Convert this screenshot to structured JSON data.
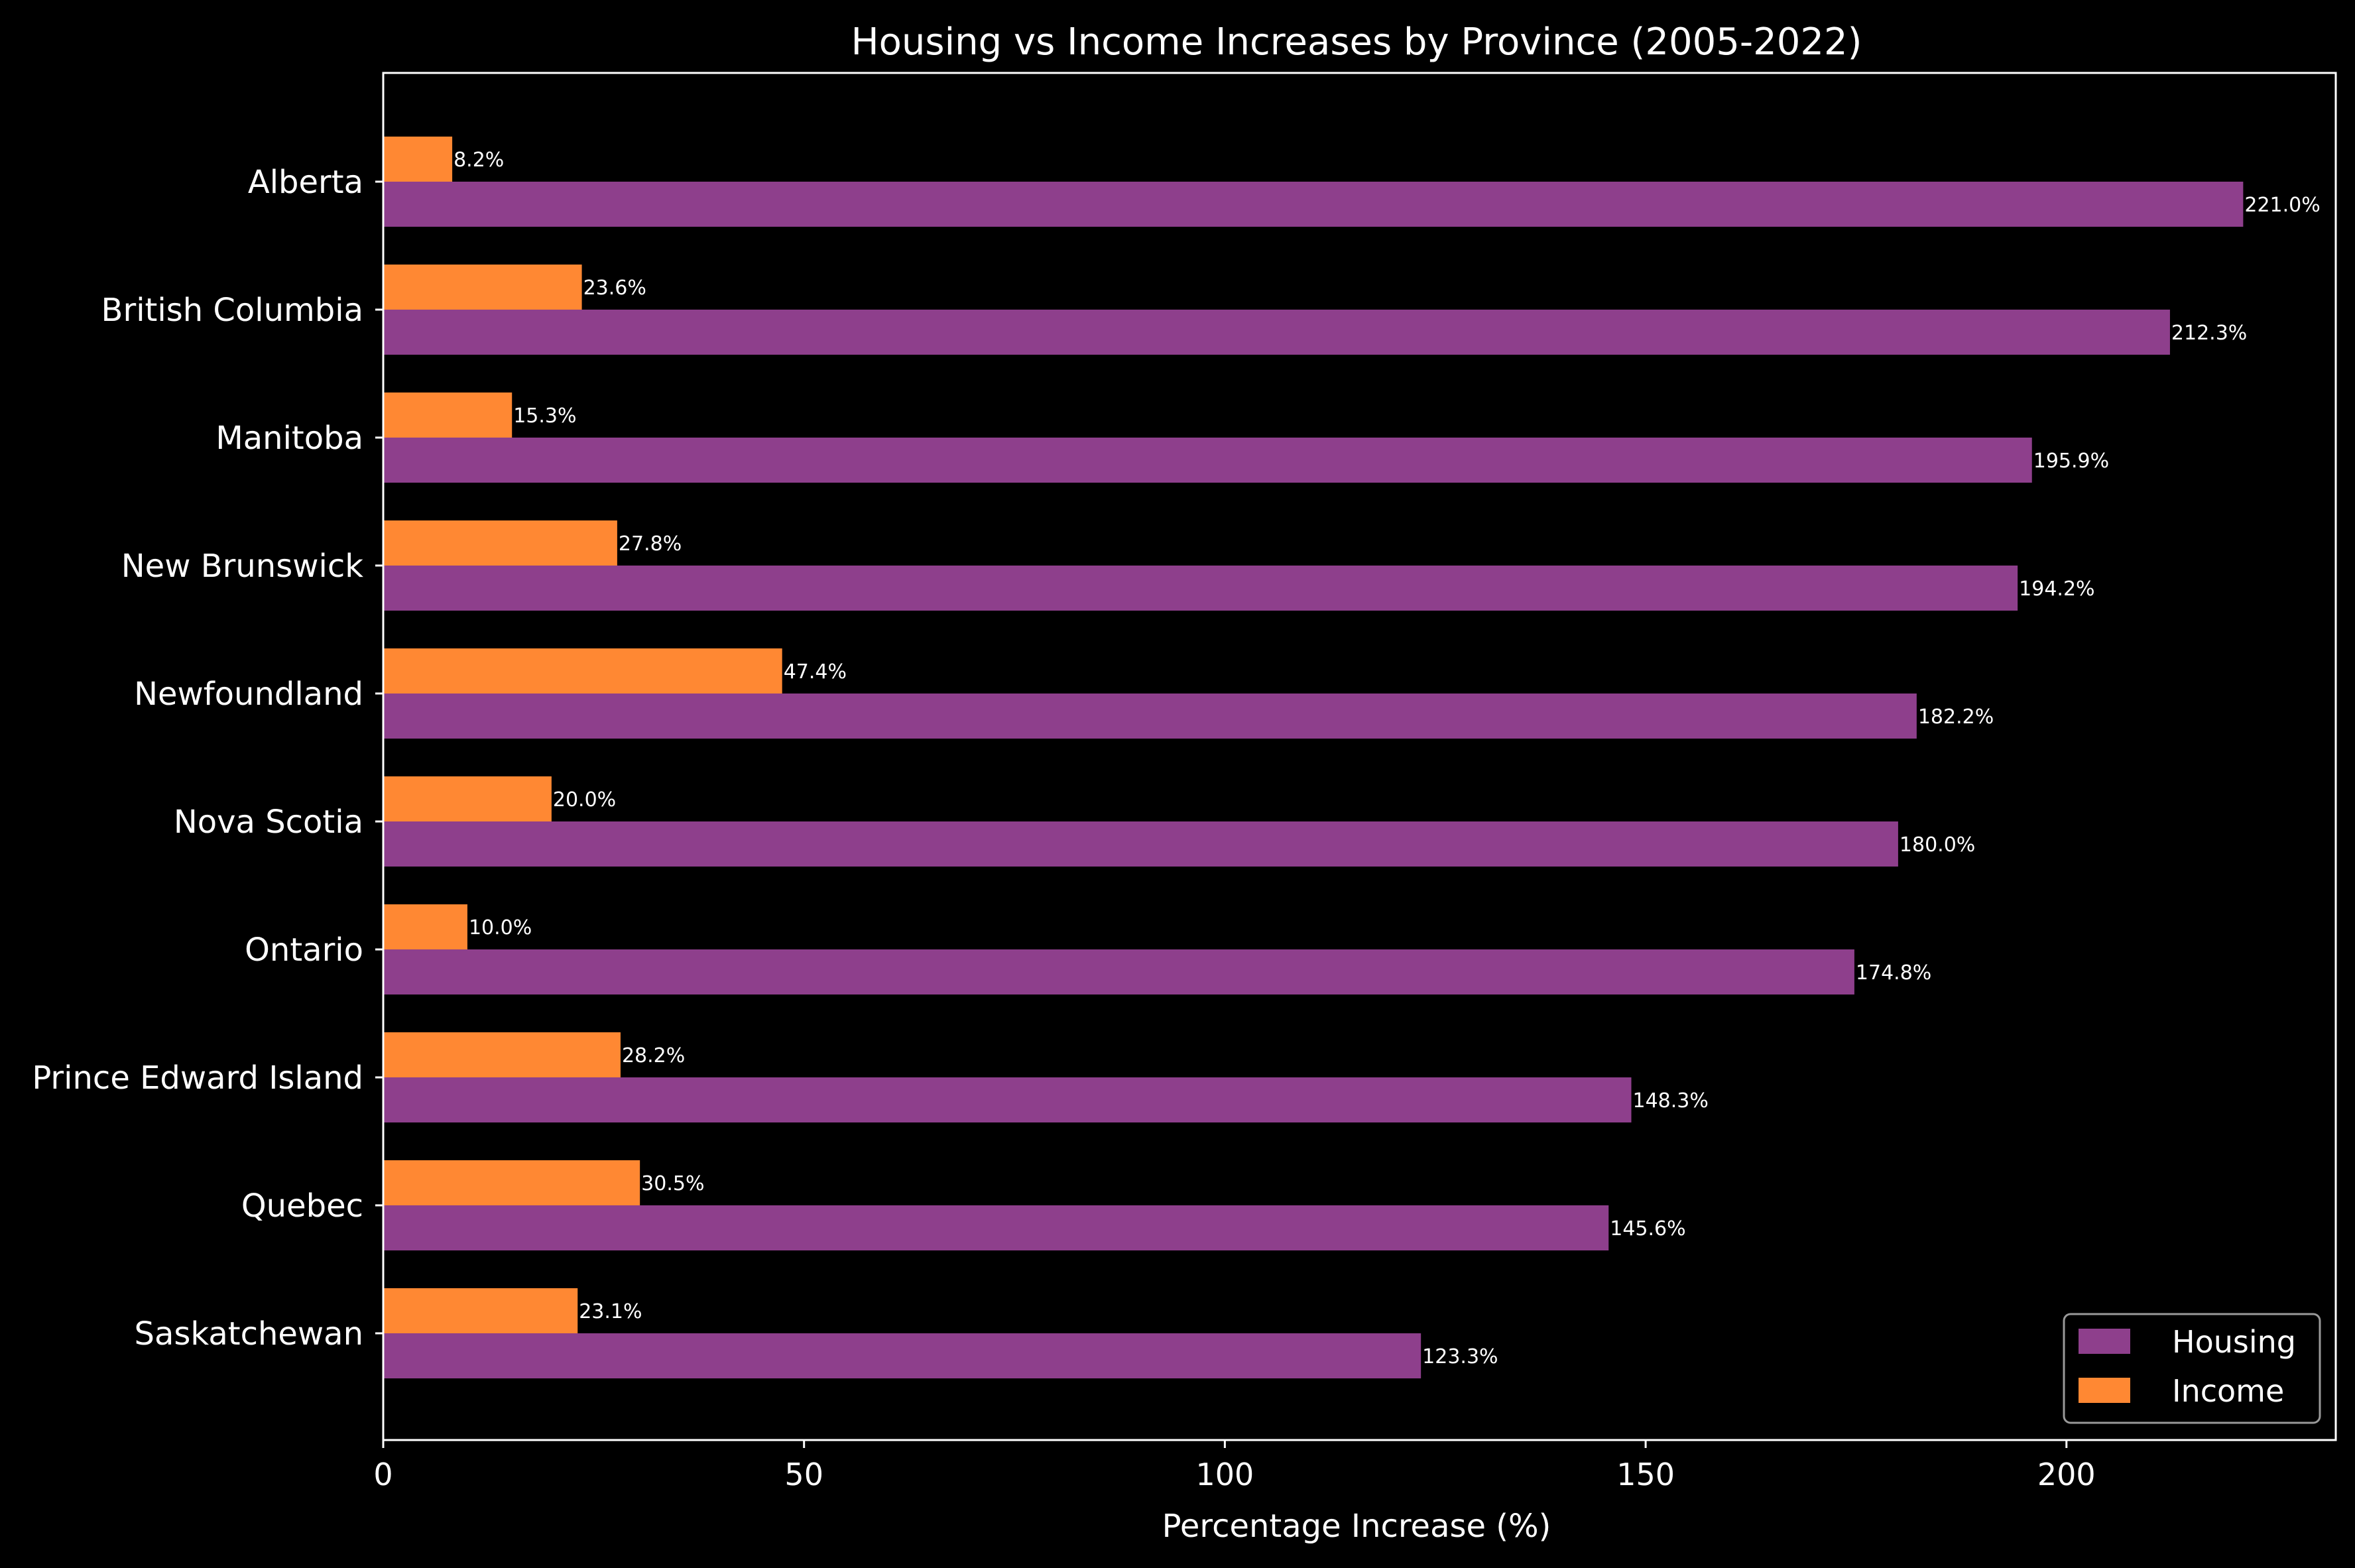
{
  "chart_data": {
    "type": "bar",
    "orientation": "horizontal",
    "title": "Housing vs Income Increases by Province (2005-2022)",
    "xlabel": "Percentage Increase (%)",
    "ylabel": "",
    "xlim": [
      0,
      232
    ],
    "xticks": [
      0,
      50,
      100,
      150,
      200
    ],
    "grid": false,
    "legend_position": "bottom-right",
    "background": "#000000",
    "text_color": "#ffffff",
    "categories": [
      "Alberta",
      "British Columbia",
      "Manitoba",
      "New Brunswick",
      "Newfoundland",
      "Nova Scotia",
      "Ontario",
      "Prince Edward Island",
      "Quebec",
      "Saskatchewan"
    ],
    "series": [
      {
        "name": "Housing",
        "color": "#8e3f8c",
        "values": [
          221.0,
          212.3,
          195.9,
          194.2,
          182.2,
          180.0,
          174.8,
          148.3,
          145.6,
          123.3
        ],
        "labels": [
          "221.0%",
          "212.3%",
          "195.9%",
          "194.2%",
          "182.2%",
          "180.0%",
          "174.8%",
          "148.3%",
          "145.6%",
          "123.3%"
        ]
      },
      {
        "name": "Income",
        "color": "#ff8833",
        "values": [
          8.2,
          23.6,
          15.3,
          27.8,
          47.4,
          20.0,
          10.0,
          28.2,
          30.5,
          23.1
        ],
        "labels": [
          "8.2%",
          "23.6%",
          "15.3%",
          "27.8%",
          "47.4%",
          "20.0%",
          "10.0%",
          "28.2%",
          "30.5%",
          "23.1%"
        ]
      }
    ]
  }
}
